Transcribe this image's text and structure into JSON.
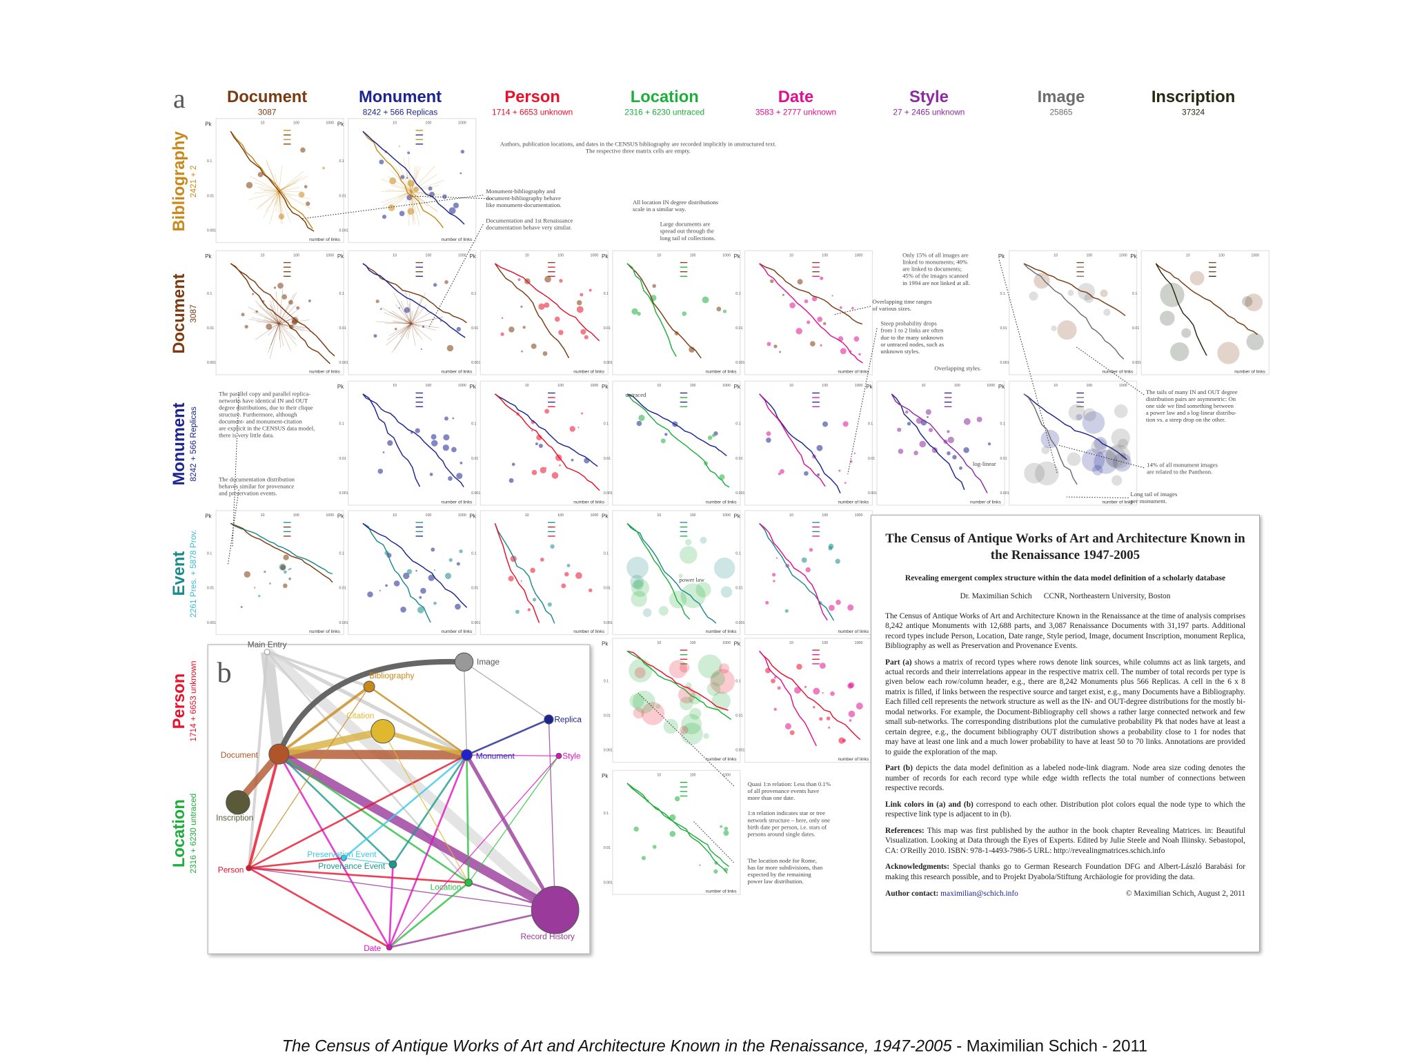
{
  "panel_a": {
    "label": "a",
    "columns": [
      {
        "name": "Document",
        "count": "3087"
      },
      {
        "name": "Monument",
        "count": "8242 + 566 Replicas"
      },
      {
        "name": "Person",
        "count": "1714 + 6653 unknown"
      },
      {
        "name": "Location",
        "count": "2316 + 6230 untraced"
      },
      {
        "name": "Date",
        "count": "3583 + 2777 unknown"
      },
      {
        "name": "Style",
        "count": "27 + 2465 unknown"
      },
      {
        "name": "Image",
        "count": "25865"
      },
      {
        "name": "Inscription",
        "count": "37324"
      }
    ],
    "rows": [
      {
        "name": "Bibliography",
        "count": "2421 + 2"
      },
      {
        "name": "Document",
        "count": "3087"
      },
      {
        "name": "Monument",
        "count": "8242 + 566 Replicas"
      },
      {
        "name": "Event",
        "count": "2261 Pres. + 5878 Prov."
      },
      {
        "name": "Person",
        "count": "1714 + 6653 unknown"
      },
      {
        "name": "Location",
        "count": "2316 + 6230 untraced"
      }
    ],
    "plot_labels": {
      "y": "Pk",
      "x": "number of links",
      "xticks": [
        10,
        100,
        1000
      ],
      "yticks": [
        0.1,
        0.01,
        0.001
      ]
    },
    "annotations": [
      {
        "lines": [
          "Authors, publication locations, and dates in the CENSUS bibliography are recorded implicitly in unstructured text.",
          "The respective three matrix cells are empty."
        ]
      },
      {
        "lines": [
          "Monument-bibliography and",
          "document-bibliography behave",
          "like monument-documentation."
        ]
      },
      {
        "lines": [
          "Documentation and 1st Renaissance",
          "documentation behave very similar."
        ]
      },
      {
        "lines": [
          "All location IN degree distributions",
          "scale in a similar way."
        ]
      },
      {
        "lines": [
          "Large documents are",
          "spread out through the",
          "long tail of collections."
        ]
      },
      {
        "lines": [
          "Only 15% of all images are",
          "linked to monuments; 40%",
          "are linked to documents;",
          "45% of the images scanned",
          "in 1994 are not linked at all."
        ]
      },
      {
        "lines": [
          "Overlapping time ranges",
          "of various sizes."
        ]
      },
      {
        "lines": [
          "Steep probability drops",
          "from 1 to 2 links are often",
          "due to the many unknown",
          "or untraced nodes, such as",
          "unknown styles."
        ]
      },
      {
        "lines": [
          "Overlapping styles."
        ]
      },
      {
        "lines": [
          "The parallel copy and parallel replica-",
          "networks have identical IN and OUT",
          "degree distributions, due to their clique",
          "structure. Furthermore, although",
          "document- and monument-citation",
          "are explicit in the CENSUS data model,",
          "there is very little data."
        ]
      },
      {
        "lines": [
          "The documentation distribution",
          "behaves similar for provenance",
          "and preservation events."
        ]
      },
      {
        "lines": [
          "The tails of many IN and OUT degree",
          "distribution pairs are asymmetric: On",
          "one side we find something between",
          "a power law and a log-linear distribu-",
          "tion vs. a steep drop on the other."
        ]
      },
      {
        "lines": [
          "14% of all monument images",
          "are related to the Pantheon."
        ]
      },
      {
        "lines": [
          "Long tail of images",
          "per monument."
        ]
      },
      {
        "lines": [
          "untraced"
        ]
      },
      {
        "lines": [
          "log-linear"
        ]
      },
      {
        "lines": [
          "power law"
        ]
      },
      {
        "lines": [
          "Quasi 1:n relation: Less than 0.1%",
          "of all provenance events have",
          "more than one date."
        ]
      },
      {
        "lines": [
          "1:n relation indicates star or tree",
          "network structure – here, only one",
          "birth date per person, i.e. stars of",
          "persons around single dates."
        ]
      },
      {
        "lines": [
          "The location node for Rome,",
          "has far more subdivisions, than",
          "expected by the remaining",
          "power law distribution."
        ]
      }
    ]
  },
  "panel_b": {
    "label": "b",
    "nodes": [
      {
        "label": "Main Entry"
      },
      {
        "label": "Image"
      },
      {
        "label": "Bibliography"
      },
      {
        "label": "Citation"
      },
      {
        "label": "Replica"
      },
      {
        "label": "Document"
      },
      {
        "label": "Monument"
      },
      {
        "label": "Style"
      },
      {
        "label": "Inscription"
      },
      {
        "label": "Preservation Event"
      },
      {
        "label": "Provenance Event"
      },
      {
        "label": "Person"
      },
      {
        "label": "Location"
      },
      {
        "label": "Date"
      },
      {
        "label": "Record History"
      }
    ]
  },
  "text_panel": {
    "title": "The Census of Antique Works of Art and Architecture Known in the Renaissance 1947-2005",
    "subtitle": "Revealing emergent complex structure within the data model definition of a scholarly database",
    "author": "Dr. Maximilian Schich",
    "affiliation": "CCNR, Northeastern University, Boston",
    "paragraphs": [
      {
        "label": "",
        "text": "The Census of Antique Works of Art and Architecture Known in the Renaissance at the time of analysis comprises 8,242 antique Monuments with 12,688 parts, and 3,087 Renaissance Documents with 31,197 parts. Additional record types include Person, Location, Date range, Style period, Image, document Inscription, monument Replica, Bibliography as well as Preservation and Provenance Events."
      },
      {
        "label": "Part (a)",
        "text": "shows a matrix of record types where rows denote link sources, while columns act as link targets, and actual records and their interrelations appear in the respective matrix cell. The number of total records per type is given below each row/column header, e.g., there are 8,242 Monuments plus 566 Replicas. A cell in the 6 x 8 matrix is filled, if links between the respective source and target exist, e.g., many Documents have a Bibliography. Each filled cell represents the network structure as well as the IN- and OUT-degree distributions for the mostly bi-modal networks. For example, the Document-Bibliography cell shows a rather large connected network and few small sub-networks. The corresponding distributions plot the cumulative probability Pk that nodes have at least a certain degree, e.g., the document bibliography OUT distribution shows a probability close to 1 for nodes that may have at least one link and a much lower probability to have at least 50 to 70 links. Annotations are provided to guide the exploration of the map."
      },
      {
        "label": "Part (b)",
        "text": "depicts the data model definition as a labeled node-link diagram. Node area size coding denotes the number of records for each record type while edge width reflects the total number of connections between respective records."
      },
      {
        "label": "Link colors in (a) and (b)",
        "text": "correspond to each other. Distribution plot colors equal the node type to which the respective link type is adjacent to in (b)."
      },
      {
        "label": "References:",
        "text": "This map was first published by the author in the book chapter Revealing Matrices. in: Beautiful Visualization. Looking at Data through the Eyes of Experts. Edited by Julie Steele and Noah Iliinsky. Sebastopol, CA: O'Reilly 2010. ISBN: 978-1-4493-7986-5   URL: http://revealingmatrices.schich.info"
      },
      {
        "label": "Acknowledgments:",
        "text": "Special thanks go to German Research Foundation DFG and Albert-László Barabási for making this research possible, and to Projekt Dyabola/Stiftung Archäologie for providing the data."
      }
    ],
    "contact_label": "Author contact:",
    "contact": "maximilian@schich.info",
    "copyright": "© Maximilian Schich, August 2, 2011"
  },
  "caption": {
    "title": "The Census of Antique Works of Art and Architecture Known in the Renaissance, 1947-2005",
    "rest": " - Maximilian Schich - 2011"
  }
}
